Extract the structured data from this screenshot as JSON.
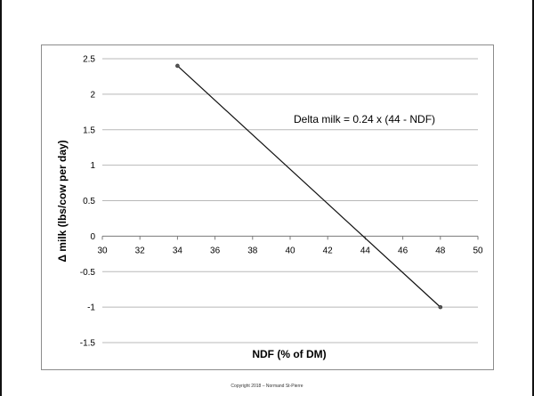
{
  "chart_data": {
    "type": "line",
    "xlabel": "NDF (% of DM)",
    "ylabel": "Δ milk (lbs/cow per day)",
    "xlim": [
      30,
      50
    ],
    "ylim": [
      -1.5,
      2.5
    ],
    "x_ticks": [
      30,
      32,
      34,
      36,
      38,
      40,
      42,
      44,
      46,
      48,
      50
    ],
    "y_ticks": [
      2.5,
      2,
      1.5,
      1,
      0.5,
      0,
      -0.5,
      -1,
      -1.5
    ],
    "grid": "horizontal",
    "series": [
      {
        "x": [
          34,
          48
        ],
        "y": [
          2.4,
          -1.0
        ]
      }
    ],
    "annotation": "Delta milk  =  0.24  x  (44  - NDF)",
    "line_color": "#111111",
    "grid_color": "#b8b8b8"
  },
  "footer": "Copyright 2018 – Normand St-Pierre"
}
